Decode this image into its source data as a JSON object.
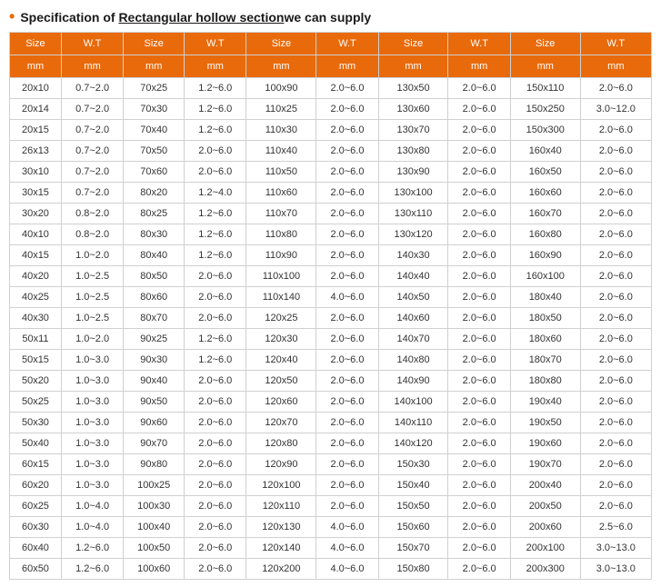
{
  "title": {
    "prefix": "Specification of ",
    "underlined": "Rectangular hollow section",
    "suffix": "we can supply"
  },
  "colors": {
    "header_bg": "#e96a0b",
    "header_text": "#ffffff",
    "border": "#d0d0d0",
    "bullet": "#e96a0b"
  },
  "table": {
    "header_row1": [
      "Size",
      "W.T",
      "Size",
      "W.T",
      "Size",
      "W.T",
      "Size",
      "W.T",
      "Size",
      "W.T"
    ],
    "header_row2": [
      "mm",
      "mm",
      "mm",
      "mm",
      "mm",
      "mm",
      "mm",
      "mm",
      "mm",
      "mm"
    ],
    "rows": [
      [
        "20x10",
        "0.7~2.0",
        "70x25",
        "1.2~6.0",
        "100x90",
        "2.0~6.0",
        "130x50",
        "2.0~6.0",
        "150x110",
        "2.0~6.0"
      ],
      [
        "20x14",
        "0.7~2.0",
        "70x30",
        "1.2~6.0",
        "110x25",
        "2.0~6.0",
        "130x60",
        "2.0~6.0",
        "150x250",
        "3.0~12.0"
      ],
      [
        "20x15",
        "0.7~2.0",
        "70x40",
        "1.2~6.0",
        "110x30",
        "2.0~6.0",
        "130x70",
        "2.0~6.0",
        "150x300",
        "2.0~6.0"
      ],
      [
        "26x13",
        "0.7~2.0",
        "70x50",
        "2.0~6.0",
        "110x40",
        "2.0~6.0",
        "130x80",
        "2.0~6.0",
        "160x40",
        "2.0~6.0"
      ],
      [
        "30x10",
        "0.7~2.0",
        "70x60",
        "2.0~6.0",
        "110x50",
        "2.0~6.0",
        "130x90",
        "2.0~6.0",
        "160x50",
        "2.0~6.0"
      ],
      [
        "30x15",
        "0.7~2.0",
        "80x20",
        "1.2~4.0",
        "110x60",
        "2.0~6.0",
        "130x100",
        "2.0~6.0",
        "160x60",
        "2.0~6.0"
      ],
      [
        "30x20",
        "0.8~2.0",
        "80x25",
        "1.2~6.0",
        "110x70",
        "2.0~6.0",
        "130x110",
        "2.0~6.0",
        "160x70",
        "2.0~6.0"
      ],
      [
        "40x10",
        "0.8~2.0",
        "80x30",
        "1.2~6.0",
        "110x80",
        "2.0~6.0",
        "130x120",
        "2.0~6.0",
        "160x80",
        "2.0~6.0"
      ],
      [
        "40x15",
        "1.0~2.0",
        "80x40",
        "1.2~6.0",
        "110x90",
        "2.0~6.0",
        "140x30",
        "2.0~6.0",
        "160x90",
        "2.0~6.0"
      ],
      [
        "40x20",
        "1.0~2.5",
        "80x50",
        "2.0~6.0",
        "110x100",
        "2.0~6.0",
        "140x40",
        "2.0~6.0",
        "160x100",
        "2.0~6.0"
      ],
      [
        "40x25",
        "1.0~2.5",
        "80x60",
        "2.0~6.0",
        "110x140",
        "4.0~6.0",
        "140x50",
        "2.0~6.0",
        "180x40",
        "2.0~6.0"
      ],
      [
        "40x30",
        "1.0~2.5",
        "80x70",
        "2.0~6.0",
        "120x25",
        "2.0~6.0",
        "140x60",
        "2.0~6.0",
        "180x50",
        "2.0~6.0"
      ],
      [
        "50x11",
        "1.0~2.0",
        "90x25",
        "1.2~6.0",
        "120x30",
        "2.0~6.0",
        "140x70",
        "2.0~6.0",
        "180x60",
        "2.0~6.0"
      ],
      [
        "50x15",
        "1.0~3.0",
        "90x30",
        "1.2~6.0",
        "120x40",
        "2.0~6.0",
        "140x80",
        "2.0~6.0",
        "180x70",
        "2.0~6.0"
      ],
      [
        "50x20",
        "1.0~3.0",
        "90x40",
        "2.0~6.0",
        "120x50",
        "2.0~6.0",
        "140x90",
        "2.0~6.0",
        "180x80",
        "2.0~6.0"
      ],
      [
        "50x25",
        "1.0~3.0",
        "90x50",
        "2.0~6.0",
        "120x60",
        "2.0~6.0",
        "140x100",
        "2.0~6.0",
        "190x40",
        "2.0~6.0"
      ],
      [
        "50x30",
        "1.0~3.0",
        "90x60",
        "2.0~6.0",
        "120x70",
        "2.0~6.0",
        "140x110",
        "2.0~6.0",
        "190x50",
        "2.0~6.0"
      ],
      [
        "50x40",
        "1.0~3.0",
        "90x70",
        "2.0~6.0",
        "120x80",
        "2.0~6.0",
        "140x120",
        "2.0~6.0",
        "190x60",
        "2.0~6.0"
      ],
      [
        "60x15",
        "1.0~3.0",
        "90x80",
        "2.0~6.0",
        "120x90",
        "2.0~6.0",
        "150x30",
        "2.0~6.0",
        "190x70",
        "2.0~6.0"
      ],
      [
        "60x20",
        "1.0~3.0",
        "100x25",
        "2.0~6.0",
        "120x100",
        "2.0~6.0",
        "150x40",
        "2.0~6.0",
        "200x40",
        "2.0~6.0"
      ],
      [
        "60x25",
        "1.0~4.0",
        "100x30",
        "2.0~6.0",
        "120x110",
        "2.0~6.0",
        "150x50",
        "2.0~6.0",
        "200x50",
        "2.0~6.0"
      ],
      [
        "60x30",
        "1.0~4.0",
        "100x40",
        "2.0~6.0",
        "120x130",
        "4.0~6.0",
        "150x60",
        "2.0~6.0",
        "200x60",
        "2.5~6.0"
      ],
      [
        "60x40",
        "1.2~6.0",
        "100x50",
        "2.0~6.0",
        "120x140",
        "4.0~6.0",
        "150x70",
        "2.0~6.0",
        "200x100",
        "3.0~13.0"
      ],
      [
        "60x50",
        "1.2~6.0",
        "100x60",
        "2.0~6.0",
        "120x200",
        "4.0~6.0",
        "150x80",
        "2.0~6.0",
        "200x300",
        "3.0~13.0"
      ]
    ]
  }
}
